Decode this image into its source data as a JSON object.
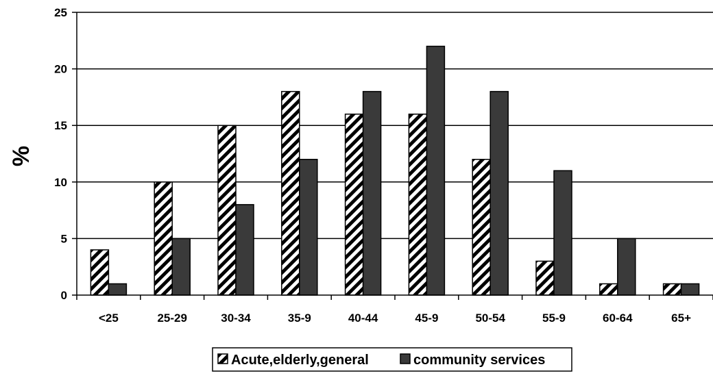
{
  "chart_data": {
    "type": "bar",
    "title": "",
    "xlabel": "",
    "ylabel": "%",
    "categories": [
      "<25",
      "25-29",
      "30-34",
      "35-9",
      "40-44",
      "45-9",
      "50-54",
      "55-9",
      "60-64",
      "65+"
    ],
    "series": [
      {
        "name": "Acute,elderly,general",
        "values": [
          4,
          10,
          15,
          18,
          16,
          16,
          12,
          3,
          1,
          1
        ],
        "pattern": "diagonal-hatch"
      },
      {
        "name": "community services",
        "values": [
          1,
          5,
          8,
          12,
          18,
          22,
          18,
          11,
          5,
          1
        ],
        "color": "#3a3a3a"
      }
    ],
    "ylim": [
      0,
      25
    ],
    "yticks": [
      0,
      5,
      10,
      15,
      20,
      25
    ],
    "grid": true,
    "legend_position": "bottom"
  }
}
